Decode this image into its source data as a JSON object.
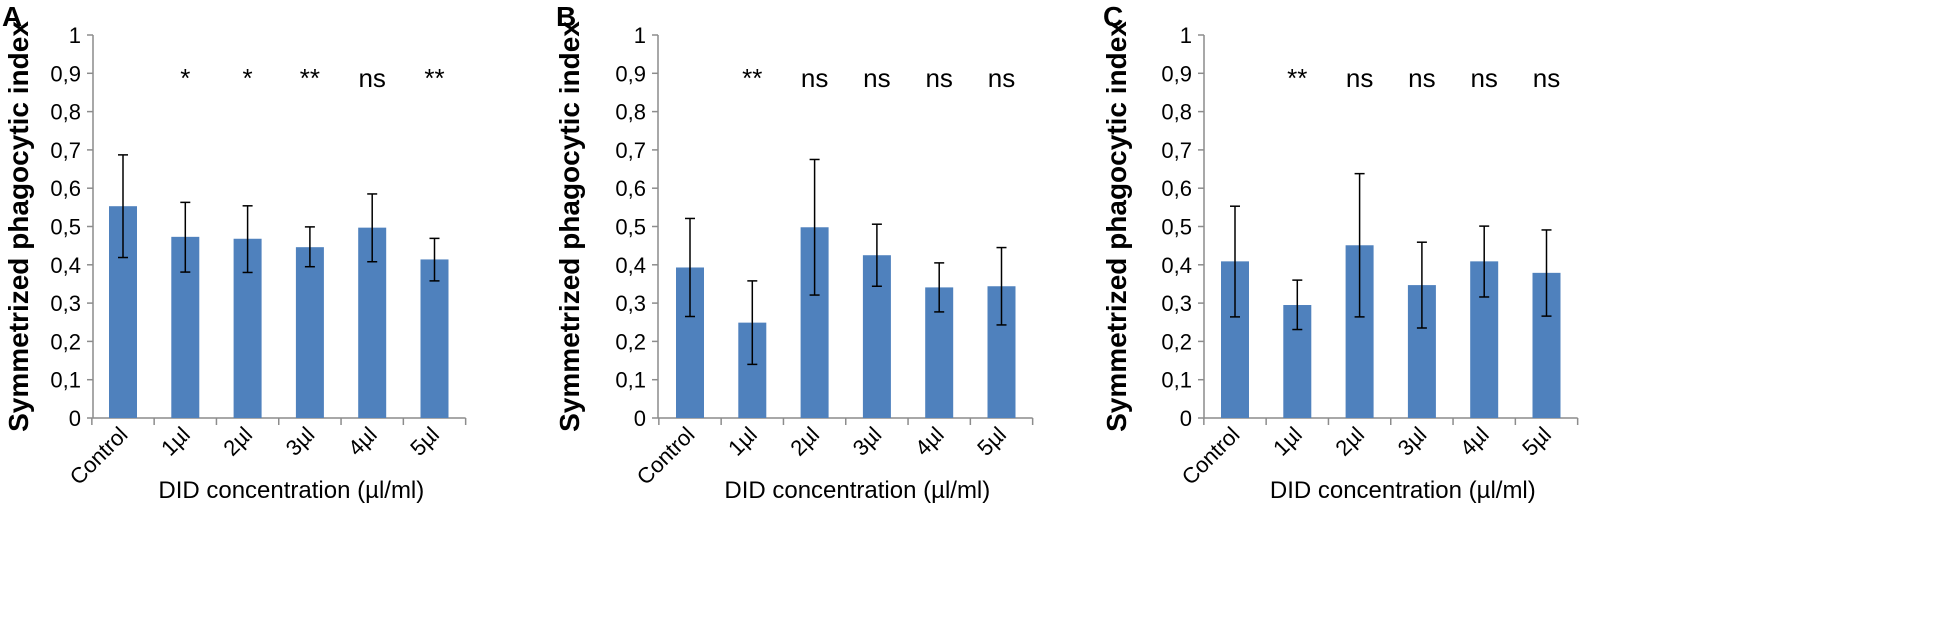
{
  "colors": {
    "bar": "#4F81BD",
    "axis": "#8C8C8C",
    "error": "#000000"
  },
  "chart_data": [
    {
      "type": "bar",
      "panel_label": "A",
      "ylabel": "Symmetrized phagocytic index",
      "xlabel": "DID concentration (µl/ml)",
      "categories": [
        "Control",
        "1µl",
        "2µl",
        "3µl",
        "4µl",
        "5µl"
      ],
      "values": [
        0.553,
        0.473,
        0.468,
        0.446,
        0.497,
        0.414
      ],
      "error_upper": [
        0.687,
        0.563,
        0.554,
        0.499,
        0.585,
        0.469
      ],
      "error_lower": [
        0.419,
        0.381,
        0.38,
        0.395,
        0.408,
        0.358
      ],
      "significance": [
        "",
        "*",
        "*",
        "**",
        "ns",
        "**"
      ],
      "ylim": [
        0,
        1
      ],
      "yticks": [
        "0",
        "0,1",
        "0,2",
        "0,3",
        "0,4",
        "0,5",
        "0,6",
        "0,7",
        "0,8",
        "0,9",
        "1"
      ]
    },
    {
      "type": "bar",
      "panel_label": "B",
      "ylabel": "Symmetrized phagocytic index",
      "xlabel": "DID concentration (µl/ml)",
      "categories": [
        "Control",
        "1µl",
        "2µl",
        "3µl",
        "4µl",
        "5µl"
      ],
      "values": [
        0.393,
        0.249,
        0.498,
        0.425,
        0.341,
        0.344
      ],
      "error_upper": [
        0.521,
        0.358,
        0.675,
        0.506,
        0.405,
        0.445
      ],
      "error_lower": [
        0.265,
        0.14,
        0.321,
        0.344,
        0.277,
        0.243
      ],
      "significance": [
        "",
        "**",
        "ns",
        "ns",
        "ns",
        "ns"
      ],
      "ylim": [
        0,
        1
      ],
      "yticks": [
        "0",
        "0,1",
        "0,2",
        "0,3",
        "0,4",
        "0,5",
        "0,6",
        "0,7",
        "0,8",
        "0,9",
        "1"
      ]
    },
    {
      "type": "bar",
      "panel_label": "C",
      "ylabel": "Symmetrized phagocytic index",
      "xlabel": "DID concentration (µl/ml)",
      "categories": [
        "Control",
        "1µl",
        "2µl",
        "3µl",
        "4µl",
        "5µl"
      ],
      "values": [
        0.409,
        0.295,
        0.451,
        0.347,
        0.409,
        0.379
      ],
      "error_upper": [
        0.553,
        0.36,
        0.638,
        0.459,
        0.501,
        0.491
      ],
      "error_lower": [
        0.264,
        0.231,
        0.264,
        0.235,
        0.316,
        0.266
      ],
      "significance": [
        "",
        "**",
        "ns",
        "ns",
        "ns",
        "ns"
      ],
      "ylim": [
        0,
        1
      ],
      "yticks": [
        "0",
        "0,1",
        "0,2",
        "0,3",
        "0,4",
        "0,5",
        "0,6",
        "0,7",
        "0,8",
        "0,9",
        "1"
      ]
    }
  ]
}
